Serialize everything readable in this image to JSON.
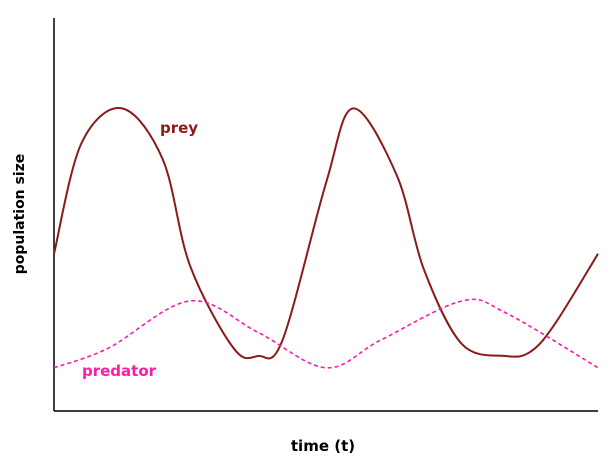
{
  "chart_data": {
    "type": "line",
    "title": "",
    "xlabel": "time (t)",
    "ylabel": "population size",
    "grid": false,
    "xlim": [
      0,
      1
    ],
    "ylim": [
      0,
      1
    ],
    "x_ticks": [],
    "y_ticks": [],
    "series": [
      {
        "name": "prey",
        "color": "#8b1a1a",
        "line_style": "solid",
        "x": [
          0.0,
          0.05,
          0.125,
          0.2,
          0.25,
          0.33,
          0.375,
          0.42,
          0.5,
          0.55,
          0.63,
          0.68,
          0.75,
          0.83,
          0.875,
          0.92,
          1.0
        ],
        "values": [
          0.4,
          0.68,
          0.77,
          0.64,
          0.37,
          0.16,
          0.14,
          0.18,
          0.58,
          0.77,
          0.6,
          0.36,
          0.17,
          0.14,
          0.15,
          0.22,
          0.4
        ]
      },
      {
        "name": "predator",
        "color": "#ff1aa8",
        "line_style": "dashed",
        "x": [
          0.0,
          0.1,
          0.25,
          0.375,
          0.5,
          0.6,
          0.75,
          0.83,
          1.0
        ],
        "values": [
          0.11,
          0.16,
          0.28,
          0.2,
          0.11,
          0.18,
          0.28,
          0.25,
          0.11
        ]
      }
    ],
    "annotations": [
      {
        "text": "prey",
        "series": "prey",
        "placement": "right of first peak"
      },
      {
        "text": "predator",
        "series": "predator",
        "placement": "below series start"
      }
    ]
  }
}
